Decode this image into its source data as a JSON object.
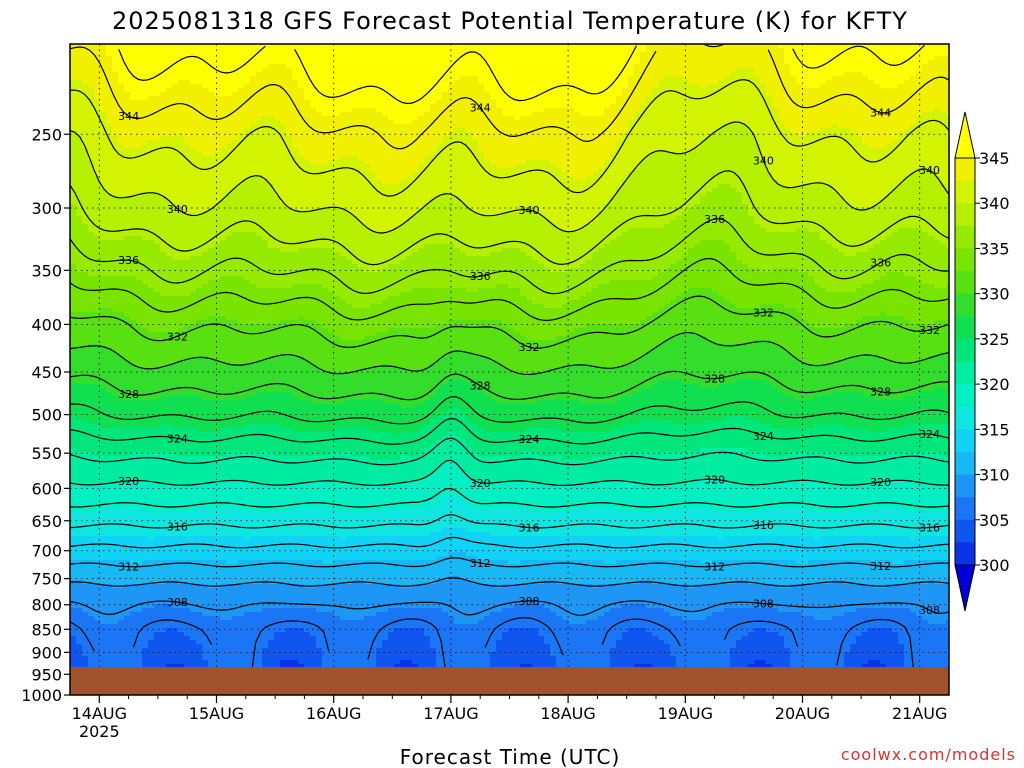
{
  "chart_data": {
    "type": "contour",
    "title": "2025081318 GFS Forecast Potential Temperature (K) for KFTY",
    "xlabel": "Forecast Time (UTC)",
    "ylabel": "",
    "credit": "coolwx.com/models",
    "x_ticks": [
      {
        "label": "14AUG",
        "sub": "2025",
        "hour": 0
      },
      {
        "label": "15AUG",
        "sub": "",
        "hour": 24
      },
      {
        "label": "16AUG",
        "sub": "",
        "hour": 48
      },
      {
        "label": "17AUG",
        "sub": "",
        "hour": 72
      },
      {
        "label": "18AUG",
        "sub": "",
        "hour": 96
      },
      {
        "label": "19AUG",
        "sub": "",
        "hour": 120
      },
      {
        "label": "20AUG",
        "sub": "",
        "hour": 144
      },
      {
        "label": "21AUG",
        "sub": "",
        "hour": 168
      }
    ],
    "x_range_hours": [
      -6,
      174
    ],
    "y_ticks": [
      "250",
      "300",
      "350",
      "400",
      "450",
      "500",
      "550",
      "600",
      "650",
      "700",
      "750",
      "800",
      "850",
      "900",
      "950",
      "1000"
    ],
    "y_axis": "pressure (hPa), log scale, inverted",
    "y_range": [
      200,
      1000
    ],
    "ground_pressure": 975,
    "colorbar": {
      "ticks": [
        "300",
        "305",
        "310",
        "315",
        "320",
        "325",
        "330",
        "335",
        "340",
        "345"
      ],
      "levels": [
        300,
        302.5,
        305,
        307.5,
        310,
        312.5,
        315,
        317.5,
        320,
        322.5,
        325,
        327.5,
        330,
        332.5,
        335,
        337.5,
        340,
        342.5,
        345
      ],
      "colors": [
        "#0000d6",
        "#0a32e6",
        "#0f55f0",
        "#1a76f5",
        "#1e96f5",
        "#18b8f5",
        "#10d4f5",
        "#0fe6e0",
        "#00f0c4",
        "#00eca0",
        "#00e67a",
        "#10e050",
        "#34dc2c",
        "#58e010",
        "#78e400",
        "#96ea00",
        "#b4f000",
        "#d2f400",
        "#f0f000",
        "#ffff00"
      ]
    },
    "contour_interval_K": 2,
    "contour_labels": [
      "344",
      "340",
      "336",
      "332",
      "328",
      "324",
      "320",
      "316",
      "312",
      "308"
    ],
    "theta_profile": [
      {
        "p": 200,
        "theta": 346
      },
      {
        "p": 250,
        "theta": 342
      },
      {
        "p": 300,
        "theta": 339
      },
      {
        "p": 350,
        "theta": 335.5
      },
      {
        "p": 400,
        "theta": 332
      },
      {
        "p": 450,
        "theta": 329
      },
      {
        "p": 500,
        "theta": 326
      },
      {
        "p": 550,
        "theta": 322.5
      },
      {
        "p": 600,
        "theta": 319.5
      },
      {
        "p": 650,
        "theta": 316.5
      },
      {
        "p": 700,
        "theta": 313.5
      },
      {
        "p": 750,
        "theta": 310.5
      },
      {
        "p": 800,
        "theta": 308
      },
      {
        "p": 850,
        "theta": 306
      },
      {
        "p": 900,
        "theta": 305
      },
      {
        "p": 950,
        "theta": 304.5
      },
      {
        "p": 975,
        "theta": 304.5
      }
    ]
  }
}
